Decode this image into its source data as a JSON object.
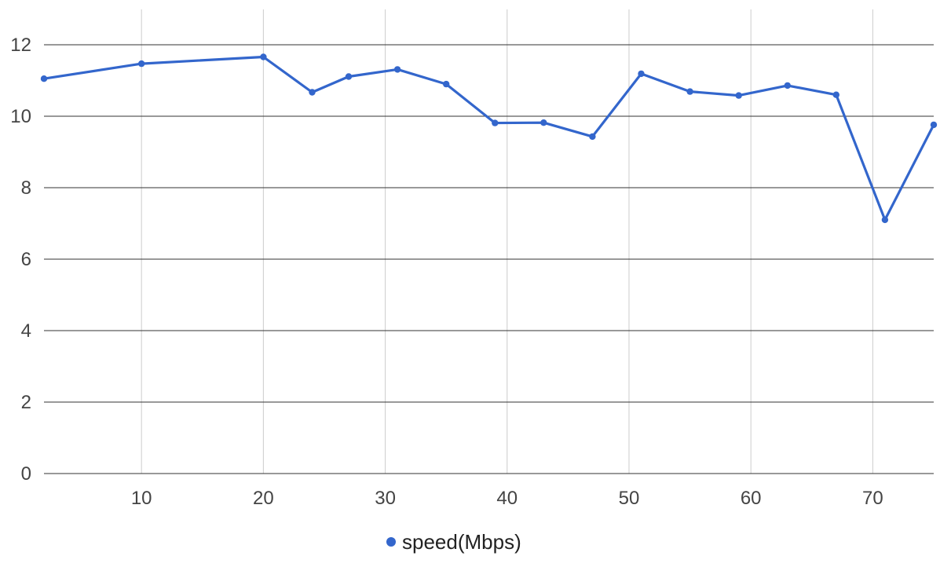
{
  "chart_data": {
    "type": "line",
    "title": "",
    "xlabel": "",
    "ylabel": "",
    "xlim": [
      2,
      75
    ],
    "ylim": [
      0,
      12
    ],
    "x_ticks": [
      10,
      20,
      30,
      40,
      50,
      60,
      70
    ],
    "y_ticks": [
      0,
      2,
      4,
      6,
      8,
      10,
      12
    ],
    "grid": true,
    "legend_position": "bottom-center",
    "series": [
      {
        "name": "speed(Mbps)",
        "color": "#3366cc",
        "x": [
          2,
          10,
          20,
          24,
          27,
          31,
          35,
          39,
          43,
          47,
          51,
          55,
          59,
          63,
          67,
          71,
          75
        ],
        "values": [
          11.05,
          11.47,
          11.66,
          10.67,
          11.11,
          11.31,
          10.9,
          9.81,
          9.82,
          9.43,
          11.19,
          10.69,
          10.58,
          10.86,
          10.6,
          7.1,
          9.76
        ]
      }
    ]
  }
}
